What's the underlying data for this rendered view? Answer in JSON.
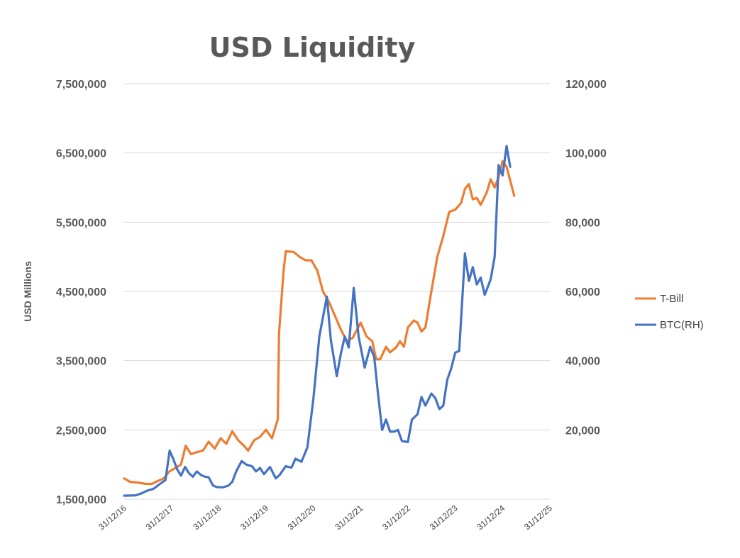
{
  "chart_data": {
    "type": "line",
    "title": "USD Liquidity",
    "ylabel": "USD Millions",
    "y2label": "",
    "ylim": [
      1500000,
      7500000
    ],
    "y2lim": [
      0,
      120000
    ],
    "xlim": [
      "2016-12-31",
      "2025-12-31"
    ],
    "y_ticks": [
      "7,500,000",
      "6,500,000",
      "5,500,000",
      "4,500,000",
      "3,500,000",
      "2,500,000",
      "1,500,000"
    ],
    "y2_ticks": [
      "120,000",
      "100,000",
      "80,000",
      "60,000",
      "40,000",
      "20,000"
    ],
    "x_ticks": [
      "31/12/16",
      "31/12/17",
      "31/12/18",
      "31/12/19",
      "31/12/20",
      "31/12/21",
      "31/12/22",
      "31/12/23",
      "31/12/24",
      "31/12/25"
    ],
    "grid": true,
    "legend_position": "right",
    "series": [
      {
        "name": "T-Bill",
        "axis": "left",
        "color": "#ED7D31",
        "points": [
          [
            "2016-12-31",
            1800000
          ],
          [
            "2017-02-15",
            1750000
          ],
          [
            "2017-04-15",
            1740000
          ],
          [
            "2017-06-15",
            1720000
          ],
          [
            "2017-08-01",
            1720000
          ],
          [
            "2017-09-15",
            1760000
          ],
          [
            "2017-11-01",
            1800000
          ],
          [
            "2017-12-15",
            1900000
          ],
          [
            "2018-01-31",
            1950000
          ],
          [
            "2018-03-15",
            2000000
          ],
          [
            "2018-04-20",
            2270000
          ],
          [
            "2018-05-31",
            2150000
          ],
          [
            "2018-07-15",
            2180000
          ],
          [
            "2018-08-31",
            2200000
          ],
          [
            "2018-10-15",
            2330000
          ],
          [
            "2018-11-30",
            2230000
          ],
          [
            "2019-01-15",
            2380000
          ],
          [
            "2019-02-28",
            2300000
          ],
          [
            "2019-04-15",
            2480000
          ],
          [
            "2019-05-31",
            2350000
          ],
          [
            "2019-07-15",
            2270000
          ],
          [
            "2019-08-15",
            2200000
          ],
          [
            "2019-09-30",
            2350000
          ],
          [
            "2019-11-15",
            2400000
          ],
          [
            "2019-12-31",
            2500000
          ],
          [
            "2020-02-15",
            2380000
          ],
          [
            "2020-03-31",
            2650000
          ],
          [
            "2020-04-10",
            3900000
          ],
          [
            "2020-05-15",
            4800000
          ],
          [
            "2020-06-01",
            5080000
          ],
          [
            "2020-07-31",
            5070000
          ],
          [
            "2020-09-15",
            5000000
          ],
          [
            "2020-10-31",
            4950000
          ],
          [
            "2020-12-15",
            4950000
          ],
          [
            "2021-01-31",
            4800000
          ],
          [
            "2021-03-15",
            4500000
          ],
          [
            "2021-04-30",
            4350000
          ],
          [
            "2021-06-15",
            4150000
          ],
          [
            "2021-07-31",
            3950000
          ],
          [
            "2021-09-15",
            3780000
          ],
          [
            "2021-10-31",
            3830000
          ],
          [
            "2021-12-31",
            4050000
          ],
          [
            "2022-02-15",
            3850000
          ],
          [
            "2022-03-31",
            3780000
          ],
          [
            "2022-04-30",
            3520000
          ],
          [
            "2022-05-31",
            3520000
          ],
          [
            "2022-07-15",
            3700000
          ],
          [
            "2022-08-15",
            3620000
          ],
          [
            "2022-09-30",
            3690000
          ],
          [
            "2022-10-31",
            3780000
          ],
          [
            "2022-11-30",
            3700000
          ],
          [
            "2022-12-31",
            3980000
          ],
          [
            "2023-02-15",
            4080000
          ],
          [
            "2023-03-15",
            4050000
          ],
          [
            "2023-04-15",
            3920000
          ],
          [
            "2023-05-15",
            3980000
          ],
          [
            "2023-06-30",
            4500000
          ],
          [
            "2023-08-15",
            5000000
          ],
          [
            "2023-09-30",
            5300000
          ],
          [
            "2023-11-15",
            5650000
          ],
          [
            "2023-12-31",
            5680000
          ],
          [
            "2024-02-15",
            5780000
          ],
          [
            "2024-03-15",
            5980000
          ],
          [
            "2024-04-15",
            6050000
          ],
          [
            "2024-05-15",
            5830000
          ],
          [
            "2024-06-15",
            5850000
          ],
          [
            "2024-07-15",
            5750000
          ],
          [
            "2024-08-31",
            5930000
          ],
          [
            "2024-09-30",
            6120000
          ],
          [
            "2024-10-31",
            6000000
          ],
          [
            "2024-11-30",
            6150000
          ],
          [
            "2024-12-31",
            6380000
          ],
          [
            "2025-01-31",
            6300000
          ],
          [
            "2025-02-28",
            6100000
          ],
          [
            "2025-03-31",
            5880000
          ]
        ]
      },
      {
        "name": "BTC(RH)",
        "axis": "right",
        "color": "#4472C4",
        "points": [
          [
            "2016-12-31",
            1000
          ],
          [
            "2017-02-15",
            1050
          ],
          [
            "2017-03-31",
            1100
          ],
          [
            "2017-05-15",
            1700
          ],
          [
            "2017-06-30",
            2500
          ],
          [
            "2017-08-15",
            3000
          ],
          [
            "2017-09-30",
            4300
          ],
          [
            "2017-11-15",
            5500
          ],
          [
            "2017-12-17",
            14000
          ],
          [
            "2018-01-15",
            11500
          ],
          [
            "2018-02-15",
            8500
          ],
          [
            "2018-03-15",
            6800
          ],
          [
            "2018-04-15",
            9300
          ],
          [
            "2018-05-15",
            7500
          ],
          [
            "2018-06-15",
            6500
          ],
          [
            "2018-07-15",
            8000
          ],
          [
            "2018-08-15",
            7000
          ],
          [
            "2018-09-15",
            6500
          ],
          [
            "2018-10-15",
            6300
          ],
          [
            "2018-11-15",
            4000
          ],
          [
            "2018-12-15",
            3500
          ],
          [
            "2019-01-31",
            3400
          ],
          [
            "2019-03-15",
            3900
          ],
          [
            "2019-04-15",
            5000
          ],
          [
            "2019-05-15",
            8000
          ],
          [
            "2019-06-26",
            11000
          ],
          [
            "2019-07-31",
            10000
          ],
          [
            "2019-09-15",
            9500
          ],
          [
            "2019-10-15",
            8000
          ],
          [
            "2019-11-15",
            9000
          ],
          [
            "2019-12-15",
            7200
          ],
          [
            "2020-01-31",
            9300
          ],
          [
            "2020-03-15",
            6000
          ],
          [
            "2020-04-15",
            7000
          ],
          [
            "2020-05-31",
            9500
          ],
          [
            "2020-07-15",
            9100
          ],
          [
            "2020-08-15",
            11700
          ],
          [
            "2020-09-30",
            10800
          ],
          [
            "2020-11-15",
            15000
          ],
          [
            "2020-12-31",
            29000
          ],
          [
            "2021-02-15",
            47000
          ],
          [
            "2021-04-14",
            58500
          ],
          [
            "2021-05-15",
            46000
          ],
          [
            "2021-06-30",
            35500
          ],
          [
            "2021-07-31",
            42000
          ],
          [
            "2021-08-31",
            47000
          ],
          [
            "2021-09-30",
            43800
          ],
          [
            "2021-11-08",
            61000
          ],
          [
            "2021-12-15",
            47000
          ],
          [
            "2022-01-31",
            38000
          ],
          [
            "2022-03-15",
            44000
          ],
          [
            "2022-04-15",
            41000
          ],
          [
            "2022-05-15",
            30000
          ],
          [
            "2022-06-15",
            20000
          ],
          [
            "2022-07-15",
            23000
          ],
          [
            "2022-08-15",
            19500
          ],
          [
            "2022-09-15",
            19500
          ],
          [
            "2022-10-15",
            20000
          ],
          [
            "2022-11-15",
            16800
          ],
          [
            "2022-12-31",
            16500
          ],
          [
            "2023-01-31",
            23000
          ],
          [
            "2023-03-15",
            24500
          ],
          [
            "2023-04-15",
            29500
          ],
          [
            "2023-05-15",
            27000
          ],
          [
            "2023-06-30",
            30500
          ],
          [
            "2023-07-31",
            29200
          ],
          [
            "2023-08-31",
            26000
          ],
          [
            "2023-09-30",
            27000
          ],
          [
            "2023-10-31",
            34500
          ],
          [
            "2023-11-30",
            37700
          ],
          [
            "2023-12-31",
            42300
          ],
          [
            "2024-01-31",
            42800
          ],
          [
            "2024-02-29",
            61000
          ],
          [
            "2024-03-15",
            71000
          ],
          [
            "2024-04-15",
            63000
          ],
          [
            "2024-05-15",
            67000
          ],
          [
            "2024-06-15",
            62000
          ],
          [
            "2024-07-15",
            64000
          ],
          [
            "2024-08-15",
            59000
          ],
          [
            "2024-09-30",
            63500
          ],
          [
            "2024-10-31",
            70000
          ],
          [
            "2024-11-30",
            96500
          ],
          [
            "2024-12-31",
            93500
          ],
          [
            "2025-01-31",
            102000
          ],
          [
            "2025-02-28",
            96000
          ]
        ]
      }
    ]
  }
}
